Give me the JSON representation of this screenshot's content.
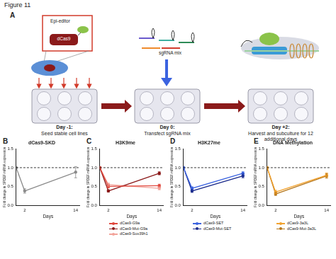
{
  "figure_title": "Figure 11",
  "panel_a": {
    "panel": "A",
    "cell_box": {
      "editor": "Epi-editor",
      "protein": "dCas9"
    },
    "reagent": "sgRNA mix",
    "steps": [
      {
        "day": "Day -1:",
        "text": "Seed stable cell lines"
      },
      {
        "day": "Day 0:",
        "text": "Transfect sgRNA mix"
      },
      {
        "day": "Day +2:",
        "text": "Harvest and subculture for 12 additional days"
      }
    ]
  },
  "chart_data": [
    {
      "type": "line",
      "panel": "B",
      "title": "dCas9-SKD",
      "x_label": "Days",
      "y_label": "Fold change in SPDEF mRNA expression",
      "xlim": [
        0,
        15
      ],
      "xticks": [
        2,
        14
      ],
      "ylim": [
        0,
        1.5
      ],
      "yticks": [
        {
          "value": 0,
          "label": "0.0"
        },
        {
          "value": 0.5,
          "label": "0.5"
        },
        {
          "value": 1,
          "label": "1.0"
        },
        {
          "value": 1.5,
          "label": "1.5"
        }
      ],
      "reference_line": 1,
      "grid": false,
      "series": [
        {
          "name": "dCas9-SKD",
          "color": "#8c8c8c",
          "marker": "circle",
          "x": [
            0,
            2,
            14
          ],
          "values": [
            1,
            0.38,
            0.88
          ],
          "errors": [
            0,
            0.06,
            0.15
          ]
        }
      ]
    },
    {
      "type": "line",
      "panel": "C",
      "title": "H3K9me",
      "x_label": "Days",
      "y_label": "Fold change in SPDEF mRNA expression",
      "xlim": [
        0,
        15
      ],
      "xticks": [
        2,
        14
      ],
      "ylim": [
        0,
        1.5
      ],
      "yticks": [
        {
          "value": 0,
          "label": "0.0"
        },
        {
          "value": 0.5,
          "label": "0.5"
        },
        {
          "value": 1,
          "label": "1.0"
        },
        {
          "value": 1.5,
          "label": "1.5"
        }
      ],
      "reference_line": 1,
      "grid": false,
      "legend": "bottom",
      "series": [
        {
          "name": "dCas9-G9a",
          "color": "#e0463c",
          "marker": "circle",
          "x": [
            0,
            2,
            14
          ],
          "values": [
            1,
            0.5,
            0.52
          ],
          "errors": [
            0,
            0.04,
            0.04
          ]
        },
        {
          "name": "dCas9-Mut-G9a",
          "color": "#8b1a1a",
          "marker": "circle",
          "x": [
            0,
            2,
            14
          ],
          "values": [
            1,
            0.38,
            0.85
          ],
          "errors": [
            0,
            0.03,
            0.04
          ]
        },
        {
          "name": "dCas9-Suv39h1",
          "color": "#f2a39a",
          "marker": "circle",
          "x": [
            0,
            2,
            14
          ],
          "values": [
            1,
            0.55,
            0.45
          ],
          "errors": [
            0,
            0.04,
            0.04
          ]
        }
      ]
    },
    {
      "type": "line",
      "panel": "D",
      "title": "H3K27me",
      "x_label": "Days",
      "y_label": "Fold change in SPDEF mRNA expression",
      "xlim": [
        0,
        15
      ],
      "xticks": [
        2,
        14
      ],
      "ylim": [
        0,
        1.5
      ],
      "yticks": [
        {
          "value": 0,
          "label": "0.0"
        },
        {
          "value": 0.5,
          "label": "0.5"
        },
        {
          "value": 1,
          "label": "1.0"
        },
        {
          "value": 1.5,
          "label": "1.5"
        }
      ],
      "reference_line": 1,
      "grid": false,
      "legend": "bottom",
      "series": [
        {
          "name": "dCas9-SET",
          "color": "#3b63e0",
          "marker": "circle",
          "x": [
            0,
            2,
            14
          ],
          "values": [
            1,
            0.45,
            0.85
          ],
          "errors": [
            0,
            0.04,
            0.04
          ]
        },
        {
          "name": "dCas9-Mut-SET",
          "color": "#1a2a8b",
          "marker": "circle",
          "x": [
            0,
            2,
            14
          ],
          "values": [
            1,
            0.38,
            0.78
          ],
          "errors": [
            0,
            0.04,
            0.05
          ]
        }
      ]
    },
    {
      "type": "line",
      "panel": "E",
      "title": "DNA Methylation",
      "x_label": "Days",
      "y_label": "Fold change in SPDEF mRNA expression",
      "xlim": [
        0,
        15
      ],
      "xticks": [
        2,
        14
      ],
      "ylim": [
        0,
        1.5
      ],
      "yticks": [
        {
          "value": 0,
          "label": "0.0"
        },
        {
          "value": 0.5,
          "label": "0.5"
        },
        {
          "value": 1,
          "label": "1.0"
        },
        {
          "value": 1.5,
          "label": "1.5"
        }
      ],
      "reference_line": 1,
      "grid": false,
      "legend": "bottom",
      "series": [
        {
          "name": "dCas9-3a3L",
          "color": "#f2a22e",
          "marker": "circle",
          "x": [
            0,
            2,
            14
          ],
          "values": [
            1,
            0.35,
            0.8
          ],
          "errors": [
            0,
            0.05,
            0.06
          ]
        },
        {
          "name": "dCas9-Mut-3a3L",
          "color": "#b5761c",
          "marker": "circle",
          "x": [
            0,
            2,
            14
          ],
          "values": [
            1,
            0.3,
            0.78
          ],
          "errors": [
            0,
            0.04,
            0.06
          ]
        }
      ]
    }
  ]
}
